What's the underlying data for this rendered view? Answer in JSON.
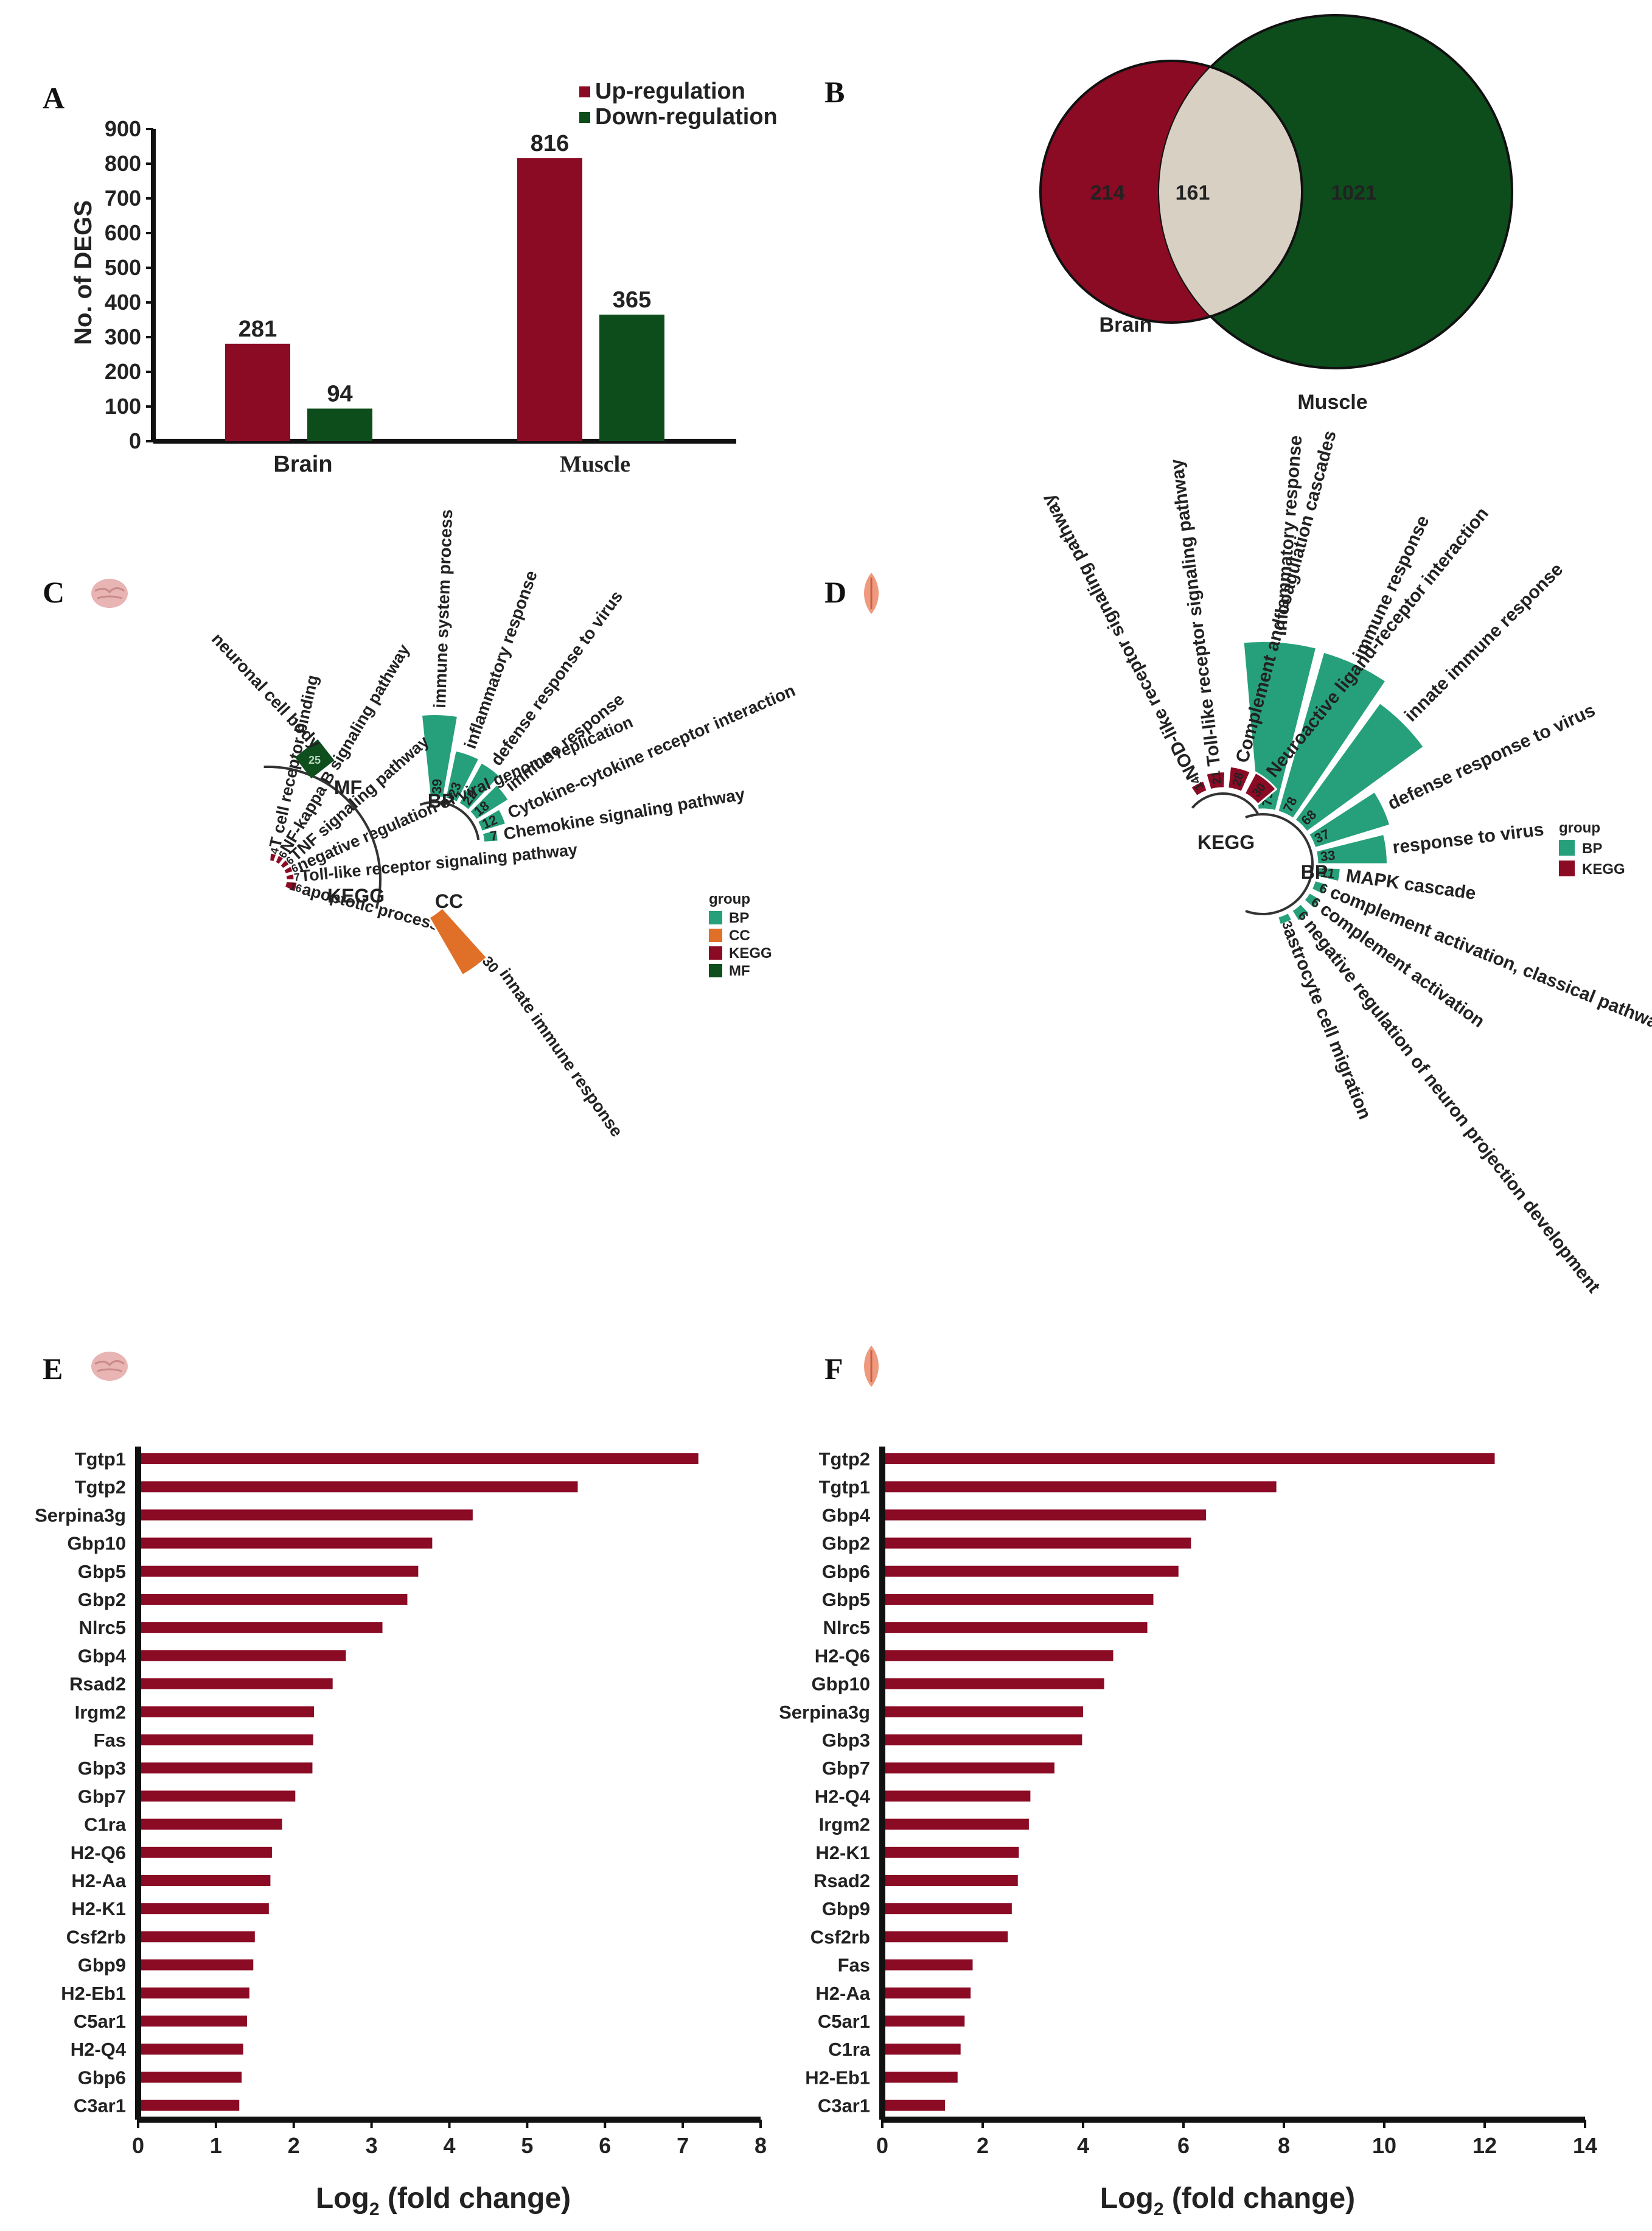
{
  "colors": {
    "up": "#8b0a24",
    "down": "#0d4d1c",
    "bp": "#26a07a",
    "cc": "#e07028",
    "kegg": "#8b0a24",
    "mf": "#0f4f1e",
    "overlap": "#d9d0c4",
    "bars": "#8b0a24"
  },
  "panel_letters": {
    "a": "A",
    "b": "B",
    "c": "C",
    "d": "D",
    "e": "E",
    "f": "F"
  },
  "chart_data": [
    {
      "id": "A",
      "type": "bar",
      "categories": [
        "Brain",
        "Muscle"
      ],
      "series": [
        {
          "name": "Up-regulation",
          "values": [
            281,
            816
          ]
        },
        {
          "name": "Down-regulation",
          "values": [
            94,
            365
          ]
        }
      ],
      "value_labels": [
        "281",
        "94",
        "816",
        "365"
      ],
      "ylabel": "No. of DEGS",
      "yticks": [
        "0",
        "100",
        "200",
        "300",
        "400",
        "500",
        "600",
        "700",
        "800",
        "900"
      ],
      "ylim": [
        0,
        900
      ],
      "legend": [
        "Up-regulation",
        "Down-regulation"
      ],
      "legend_position": "top-right"
    },
    {
      "id": "B",
      "type": "venn",
      "sets": [
        "Brain",
        "Muscle"
      ],
      "values": {
        "brain_only": 214,
        "both": 161,
        "muscle_only": 1021
      },
      "labels": {
        "brain_only": "214",
        "both": "161",
        "muscle_only": "1021"
      }
    },
    {
      "id": "C",
      "type": "radial-bar",
      "title_icon": "brain-icon",
      "legend_title": "group",
      "legend": [
        "BP",
        "CC",
        "KEGG",
        "MF"
      ],
      "groups": [
        {
          "name": "BP",
          "terms": [
            {
              "term": "immune system process",
              "value": 39
            },
            {
              "term": "inflammatory response",
              "value": 23
            },
            {
              "term": "defense response to virus",
              "value": 22
            },
            {
              "term": "immune response",
              "value": 18
            },
            {
              "term": "Cytokine-cytokine receptor interaction",
              "value": 12
            },
            {
              "term": "Chemokine signaling pathway",
              "value": 7
            }
          ]
        },
        {
          "name": "CC",
          "terms": [
            {
              "term": "innate immune response",
              "value": 30
            }
          ]
        },
        {
          "name": "KEGG",
          "terms": [
            {
              "term": "T cell receptor binding",
              "value": 4
            },
            {
              "term": "NF-kappa B signaling pathway",
              "value": 6
            },
            {
              "term": "TNF signaling pathway",
              "value": 6
            },
            {
              "term": "negative regulation of viral genome replication",
              "value": 6
            },
            {
              "term": "Toll-like receptor signaling pathway",
              "value": 7
            },
            {
              "term": "apoptotic process",
              "value": 16
            }
          ]
        },
        {
          "name": "MF",
          "terms": [
            {
              "term": "neuronal cell body",
              "value": 25
            }
          ]
        }
      ]
    },
    {
      "id": "D",
      "type": "radial-bar",
      "title_icon": "muscle-icon",
      "legend_title": "group",
      "legend": [
        "BP",
        "KEGG"
      ],
      "groups": [
        {
          "name": "BP",
          "terms": [
            {
              "term": "inflammatory response",
              "value": 79
            },
            {
              "term": "immune response",
              "value": 78
            },
            {
              "term": "innate immune response",
              "value": 68
            },
            {
              "term": "defense response to virus",
              "value": 37
            },
            {
              "term": "response to virus",
              "value": 33
            },
            {
              "term": "MAPK cascade",
              "value": 11
            },
            {
              "term": "complement activation, classical pathway",
              "value": 6
            },
            {
              "term": "complement activation",
              "value": 6
            },
            {
              "term": "negative regulation of neuron projection development",
              "value": 6
            },
            {
              "term": "astrocyte cell migration",
              "value": 3
            }
          ]
        },
        {
          "name": "KEGG",
          "terms": [
            {
              "term": "NOD-like receptor signaling pathway",
              "value": 14
            },
            {
              "term": "Toll-like receptor signaling pathway",
              "value": 21
            },
            {
              "term": "Complement and coagulation cascades",
              "value": 28
            },
            {
              "term": "Neuroactive ligand-receptor interaction",
              "value": 30
            }
          ]
        }
      ]
    },
    {
      "id": "E",
      "type": "bar",
      "orientation": "horizontal",
      "title_icon": "brain-icon",
      "categories": [
        "Tgtp1",
        "Tgtp2",
        "Serpina3g",
        "Gbp10",
        "Gbp5",
        "Gbp2",
        "Nlrc5",
        "Gbp4",
        "Rsad2",
        "Irgm2",
        "Fas",
        "Gbp3",
        "Gbp7",
        "C1ra",
        "H2-Q6",
        "H2-Aa",
        "H2-K1",
        "Csf2rb",
        "Gbp9",
        "H2-Eb1",
        "C5ar1",
        "H2-Q4",
        "Gbp6",
        "C3ar1"
      ],
      "values": [
        7.2,
        5.65,
        4.3,
        3.78,
        3.6,
        3.46,
        3.14,
        2.67,
        2.5,
        2.26,
        2.25,
        2.24,
        2.02,
        1.85,
        1.72,
        1.7,
        1.68,
        1.5,
        1.48,
        1.43,
        1.4,
        1.35,
        1.33,
        1.3
      ],
      "xlabel": "Log",
      "xlabel_sub": "2",
      "xlabel_tail": " (fold change)",
      "xticks": [
        "0",
        "1",
        "2",
        "3",
        "4",
        "5",
        "6",
        "7",
        "8"
      ],
      "xlim": [
        0,
        8
      ]
    },
    {
      "id": "F",
      "type": "bar",
      "orientation": "horizontal",
      "title_icon": "muscle-icon",
      "categories": [
        "Tgtp2",
        "Tgtp1",
        "Gbp4",
        "Gbp2",
        "Gbp6",
        "Gbp5",
        "Nlrc5",
        "H2-Q6",
        "Gbp10",
        "Serpina3g",
        "Gbp3",
        "Gbp7",
        "H2-Q4",
        "Irgm2",
        "H2-K1",
        "Rsad2",
        "Gbp9",
        "Csf2rb",
        "Fas",
        "H2-Aa",
        "C5ar1",
        "C1ra",
        "H2-Eb1",
        "C3ar1"
      ],
      "values": [
        12.2,
        7.85,
        6.45,
        6.15,
        5.9,
        5.4,
        5.28,
        4.6,
        4.42,
        4.0,
        3.98,
        3.43,
        2.95,
        2.92,
        2.72,
        2.7,
        2.58,
        2.5,
        1.8,
        1.76,
        1.64,
        1.56,
        1.5,
        1.25
      ],
      "xlabel": "Log",
      "xlabel_sub": "2",
      "xlabel_tail": " (fold change)",
      "xticks": [
        "0",
        "2",
        "4",
        "6",
        "8",
        "10",
        "12",
        "14"
      ],
      "xlim": [
        0,
        14
      ]
    }
  ]
}
